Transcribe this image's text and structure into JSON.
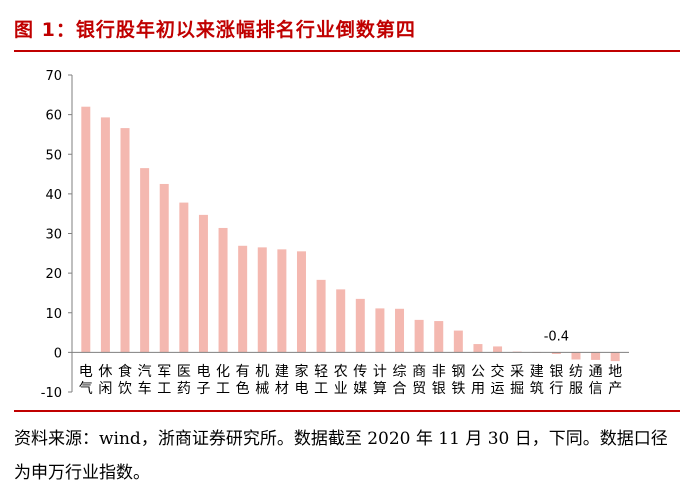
{
  "figure": {
    "title": "图 1：银行股年初以来涨幅排名行业倒数第四",
    "source": "资料来源：wind，浙商证券研究所。数据截至 2020 年 11 月 30 日，下同。数据口径为申万行业指数。"
  },
  "colors": {
    "accent": "#c00000",
    "bar": "#f4b8b0",
    "text": "#000000"
  },
  "chart_data": {
    "type": "bar",
    "title": "图 1：银行股年初以来涨幅排名行业倒数第四",
    "categories": [
      "电气",
      "休闲",
      "食饮",
      "汽车",
      "军工",
      "医药",
      "电子",
      "化工",
      "有色",
      "机械",
      "建材",
      "家电",
      "轻工",
      "农业",
      "传媒",
      "计算",
      "综合",
      "商贸",
      "非银",
      "钢铁",
      "公用",
      "交运",
      "采掘",
      "建筑",
      "银行",
      "纺服",
      "通信",
      "地产"
    ],
    "values": [
      62.0,
      59.3,
      56.6,
      46.5,
      42.5,
      37.8,
      34.7,
      31.4,
      26.9,
      26.5,
      26.0,
      25.5,
      18.3,
      15.9,
      13.5,
      11.1,
      11.0,
      8.2,
      7.9,
      5.5,
      2.1,
      1.5,
      0.2,
      0.1,
      -0.4,
      -1.8,
      -1.9,
      -2.2
    ],
    "annotations": [
      {
        "category": "银行",
        "text": "-0.4"
      }
    ],
    "ylim": [
      -10,
      70
    ],
    "yticks": [
      -10,
      0,
      10,
      20,
      30,
      40,
      50,
      60,
      70
    ],
    "xlabel": "",
    "ylabel": "",
    "grid": false,
    "legend": "none"
  }
}
